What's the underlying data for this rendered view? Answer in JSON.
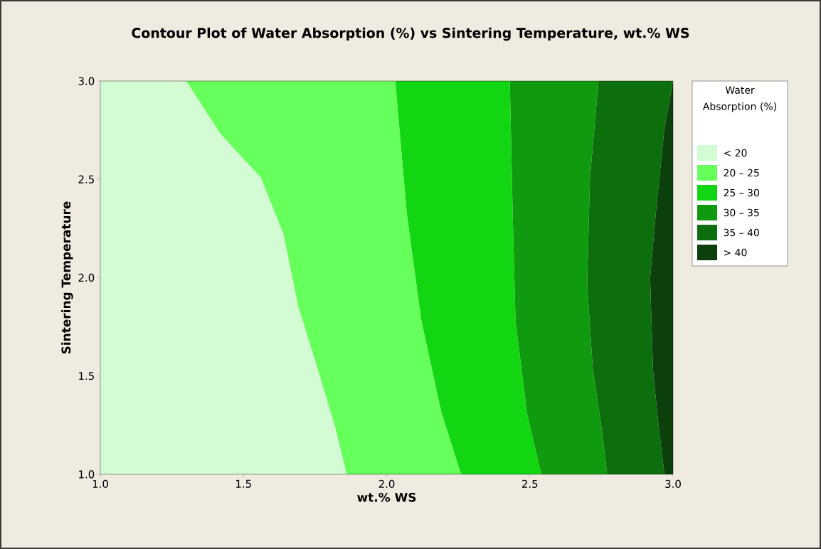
{
  "chart_data": {
    "type": "area",
    "title": "Contour Plot of Water Absorption (%) vs Sintering Temperature, wt.% WS",
    "xlabel": "wt.% WS",
    "ylabel": "Sintering Temperature",
    "legend_title": "Water Absorption (%)",
    "legend": "right",
    "xlim": [
      1,
      3
    ],
    "ylim": [
      1,
      3
    ],
    "xticks": [
      {
        "value": 1,
        "label": "1.0"
      },
      {
        "value": 1.5,
        "label": "1.5"
      },
      {
        "value": 2,
        "label": "2.0"
      },
      {
        "value": 2.5,
        "label": "2.5"
      },
      {
        "value": 3,
        "label": "3.0"
      }
    ],
    "yticks": [
      {
        "value": 1,
        "label": "1.0"
      },
      {
        "value": 1.5,
        "label": "1.5"
      },
      {
        "value": 2,
        "label": "2.0"
      },
      {
        "value": 2.5,
        "label": "2.5"
      },
      {
        "value": 3,
        "label": "3.0"
      }
    ],
    "series": [
      {
        "name": "< 20",
        "color": "#d4fcd4",
        "x": [
          1.0,
          1.3,
          1.42,
          1.56,
          1.64,
          1.69,
          1.76,
          1.82,
          1.86,
          1.0
        ],
        "values": [
          3.0,
          3.0,
          2.73,
          2.51,
          2.22,
          1.86,
          1.53,
          1.24,
          1.0,
          1.0
        ]
      },
      {
        "name": "20 – 25",
        "color": "#66ff5c",
        "x": [
          1.3,
          1.42,
          1.56,
          1.64,
          1.69,
          1.76,
          1.82,
          1.86,
          2.26,
          2.19,
          2.12,
          2.07,
          2.03
        ],
        "values": [
          3.0,
          2.73,
          2.51,
          2.22,
          1.86,
          1.53,
          1.24,
          1.0,
          1.0,
          1.32,
          1.79,
          2.33,
          3.0
        ]
      },
      {
        "name": "25 – 30",
        "color": "#12d612",
        "x": [
          2.03,
          2.07,
          2.12,
          2.19,
          2.26,
          2.54,
          2.49,
          2.45,
          2.44,
          2.43
        ],
        "values": [
          3.0,
          2.33,
          1.79,
          1.32,
          1.0,
          1.0,
          1.31,
          1.78,
          2.33,
          3.0
        ]
      },
      {
        "name": "30 – 35",
        "color": "#0f9a0f",
        "x": [
          2.43,
          2.44,
          2.45,
          2.49,
          2.54,
          2.77,
          2.75,
          2.72,
          2.7,
          2.71,
          2.74
        ],
        "values": [
          3.0,
          2.33,
          1.78,
          1.31,
          1.0,
          1.0,
          1.24,
          1.53,
          1.97,
          2.51,
          3.0
        ]
      },
      {
        "name": "35 – 40",
        "color": "#0d6e0d",
        "x": [
          2.74,
          2.71,
          2.7,
          2.72,
          2.75,
          2.77,
          2.97,
          2.95,
          2.93,
          2.92,
          2.94,
          2.97,
          3.0
        ],
        "values": [
          3.0,
          2.51,
          1.97,
          1.53,
          1.24,
          1.0,
          1.0,
          1.24,
          1.53,
          2.0,
          2.33,
          2.76,
          3.0
        ]
      },
      {
        "name": "> 40",
        "color": "#0b3f0b",
        "x": [
          3.0,
          2.97,
          2.94,
          2.92,
          2.93,
          2.95,
          2.97,
          3.0
        ],
        "values": [
          3.0,
          2.76,
          2.33,
          2.0,
          1.53,
          1.24,
          1.0,
          1.0
        ]
      }
    ]
  }
}
